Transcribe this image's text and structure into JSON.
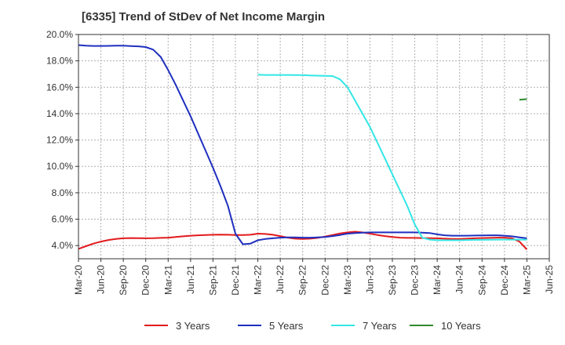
{
  "chart_data": {
    "type": "line",
    "title": "[6335]  Trend of StDev of Net Income Margin",
    "xlabel": "",
    "ylabel": "",
    "x_ticks": [
      "Mar-20",
      "Jun-20",
      "Sep-20",
      "Dec-20",
      "Mar-21",
      "Jun-21",
      "Sep-21",
      "Dec-21",
      "Mar-22",
      "Jun-22",
      "Sep-22",
      "Dec-22",
      "Mar-23",
      "Jun-23",
      "Sep-23",
      "Dec-23",
      "Mar-24",
      "Jun-24",
      "Sep-24",
      "Dec-24",
      "Mar-25",
      "Jun-25"
    ],
    "y_ticks": [
      "4.0%",
      "6.0%",
      "8.0%",
      "10.0%",
      "12.0%",
      "14.0%",
      "16.0%",
      "18.0%",
      "20.0%"
    ],
    "ylim": [
      3.0,
      20.0
    ],
    "grid": true,
    "legend_position": "bottom",
    "series": [
      {
        "name": "3 Years",
        "color": "#e31a1c",
        "x": [
          "Mar-20",
          "Apr-20",
          "May-20",
          "Jun-20",
          "Jul-20",
          "Aug-20",
          "Sep-20",
          "Oct-20",
          "Nov-20",
          "Dec-20",
          "Jan-21",
          "Feb-21",
          "Mar-21",
          "Apr-21",
          "May-21",
          "Jun-21",
          "Jul-21",
          "Aug-21",
          "Sep-21",
          "Oct-21",
          "Nov-21",
          "Dec-21",
          "Jan-22",
          "Feb-22",
          "Mar-22",
          "Apr-22",
          "May-22",
          "Jun-22",
          "Jul-22",
          "Aug-22",
          "Sep-22",
          "Oct-22",
          "Nov-22",
          "Dec-22",
          "Jan-23",
          "Feb-23",
          "Mar-23",
          "Apr-23",
          "May-23",
          "Jun-23",
          "Jul-23",
          "Aug-23",
          "Sep-23",
          "Oct-23",
          "Nov-23",
          "Dec-23",
          "Jan-24",
          "Feb-24",
          "Mar-24",
          "Apr-24",
          "May-24",
          "Jun-24",
          "Jul-24",
          "Aug-24",
          "Sep-24",
          "Oct-24",
          "Nov-24",
          "Dec-24",
          "Jan-25",
          "Feb-25",
          "Mar-25"
        ],
        "values": [
          3.75,
          3.95,
          4.15,
          4.3,
          4.42,
          4.5,
          4.55,
          4.57,
          4.56,
          4.55,
          4.56,
          4.58,
          4.6,
          4.65,
          4.7,
          4.75,
          4.78,
          4.8,
          4.82,
          4.83,
          4.82,
          4.8,
          4.8,
          4.82,
          4.9,
          4.88,
          4.82,
          4.72,
          4.6,
          4.52,
          4.5,
          4.52,
          4.58,
          4.68,
          4.8,
          4.92,
          5.0,
          5.05,
          5.0,
          4.9,
          4.8,
          4.72,
          4.65,
          4.6,
          4.58,
          4.58,
          4.57,
          4.56,
          4.55,
          4.52,
          4.5,
          4.5,
          4.52,
          4.55,
          4.57,
          4.58,
          4.6,
          4.6,
          4.55,
          4.3,
          3.7
        ]
      },
      {
        "name": "5 Years",
        "color": "#1f2fbf",
        "x": [
          "Mar-20",
          "Apr-20",
          "May-20",
          "Jun-20",
          "Jul-20",
          "Aug-20",
          "Sep-20",
          "Oct-20",
          "Nov-20",
          "Dec-20",
          "Jan-21",
          "Feb-21",
          "Mar-21",
          "Apr-21",
          "May-21",
          "Jun-21",
          "Jul-21",
          "Aug-21",
          "Sep-21",
          "Oct-21",
          "Nov-21",
          "Dec-21",
          "Jan-22",
          "Feb-22",
          "Mar-22",
          "Apr-22",
          "May-22",
          "Jun-22",
          "Jul-22",
          "Aug-22",
          "Sep-22",
          "Oct-22",
          "Nov-22",
          "Dec-22",
          "Jan-23",
          "Feb-23",
          "Mar-23",
          "Apr-23",
          "May-23",
          "Jun-23",
          "Jul-23",
          "Aug-23",
          "Sep-23",
          "Oct-23",
          "Nov-23",
          "Dec-23",
          "Jan-24",
          "Feb-24",
          "Mar-24",
          "Apr-24",
          "May-24",
          "Jun-24",
          "Jul-24",
          "Aug-24",
          "Sep-24",
          "Oct-24",
          "Nov-24",
          "Dec-24",
          "Jan-25",
          "Feb-25",
          "Mar-25"
        ],
        "values": [
          19.2,
          19.15,
          19.13,
          19.13,
          19.14,
          19.15,
          19.15,
          19.12,
          19.1,
          19.05,
          18.85,
          18.3,
          17.3,
          16.2,
          15.0,
          13.8,
          12.5,
          11.2,
          9.9,
          8.5,
          7.0,
          4.9,
          4.1,
          4.15,
          4.4,
          4.5,
          4.55,
          4.6,
          4.62,
          4.62,
          4.6,
          4.6,
          4.62,
          4.65,
          4.72,
          4.8,
          4.9,
          4.95,
          4.98,
          5.0,
          5.0,
          5.0,
          5.0,
          5.0,
          5.0,
          5.0,
          4.98,
          4.95,
          4.85,
          4.78,
          4.75,
          4.75,
          4.75,
          4.76,
          4.77,
          4.78,
          4.78,
          4.75,
          4.7,
          4.62,
          4.55
        ]
      },
      {
        "name": "7 Years",
        "color": "#33e6e6",
        "x": [
          "Mar-22",
          "Apr-22",
          "May-22",
          "Jun-22",
          "Jul-22",
          "Aug-22",
          "Sep-22",
          "Oct-22",
          "Nov-22",
          "Dec-22",
          "Jan-23",
          "Feb-23",
          "Mar-23",
          "Apr-23",
          "May-23",
          "Jun-23",
          "Jul-23",
          "Aug-23",
          "Sep-23",
          "Oct-23",
          "Nov-23",
          "Dec-23",
          "Jan-24",
          "Feb-24",
          "Mar-24",
          "Apr-24",
          "May-24",
          "Jun-24",
          "Jul-24",
          "Aug-24",
          "Sep-24",
          "Oct-24",
          "Nov-24",
          "Dec-24",
          "Jan-25",
          "Feb-25",
          "Mar-25"
        ],
        "values": [
          16.95,
          16.93,
          16.93,
          16.93,
          16.93,
          16.92,
          16.92,
          16.9,
          16.88,
          16.87,
          16.85,
          16.6,
          16.0,
          15.0,
          14.0,
          13.0,
          11.8,
          10.6,
          9.4,
          8.2,
          7.0,
          5.6,
          4.6,
          4.45,
          4.4,
          4.4,
          4.4,
          4.4,
          4.42,
          4.43,
          4.43,
          4.44,
          4.45,
          4.45,
          4.45,
          4.45,
          4.45
        ]
      },
      {
        "name": "10 Years",
        "color": "#2e8b2e",
        "x": [
          "Feb-25",
          "Mar-25"
        ],
        "values": [
          15.05,
          15.1
        ]
      }
    ]
  }
}
